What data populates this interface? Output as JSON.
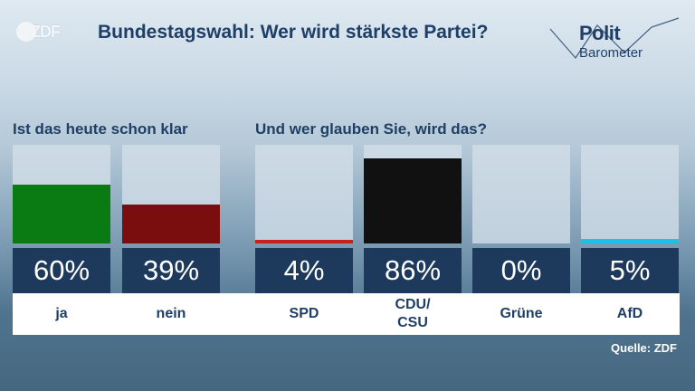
{
  "header": {
    "title": "Bundestagswahl: Wer wird stärkste Partei?",
    "brand_logo": "ZDF",
    "show_logo_line1": "Polit",
    "show_logo_line2": "Barometer"
  },
  "source": "Quelle: ZDF",
  "colors": {
    "title_blue": "#1f3f66",
    "value_box": "#1d3a5c",
    "ja": "#0a7a12",
    "nein": "#7a0e0e",
    "SPD": "#c8201a",
    "CDU/CSU": "#111111",
    "Grüne": "#3aa53a",
    "AfD": "#1ec0ea"
  },
  "chart_data": [
    {
      "type": "bar",
      "title": "Ist das heute schon klar",
      "categories": [
        "ja",
        "nein"
      ],
      "values": [
        60,
        39
      ],
      "value_labels": [
        "60%",
        "39%"
      ],
      "colors": [
        "#0a7a12",
        "#7a0e0e"
      ],
      "ylim": [
        0,
        100
      ]
    },
    {
      "type": "bar",
      "title": "Und wer glauben Sie, wird das?",
      "categories": [
        "SPD",
        "CDU/\nCSU",
        "Grüne",
        "AfD"
      ],
      "values": [
        4,
        86,
        0,
        5
      ],
      "value_labels": [
        "4%",
        "86%",
        "0%",
        "5%"
      ],
      "colors": [
        "#c8201a",
        "#111111",
        "#3aa53a",
        "#1ec0ea"
      ],
      "ylim": [
        0,
        100
      ]
    }
  ]
}
